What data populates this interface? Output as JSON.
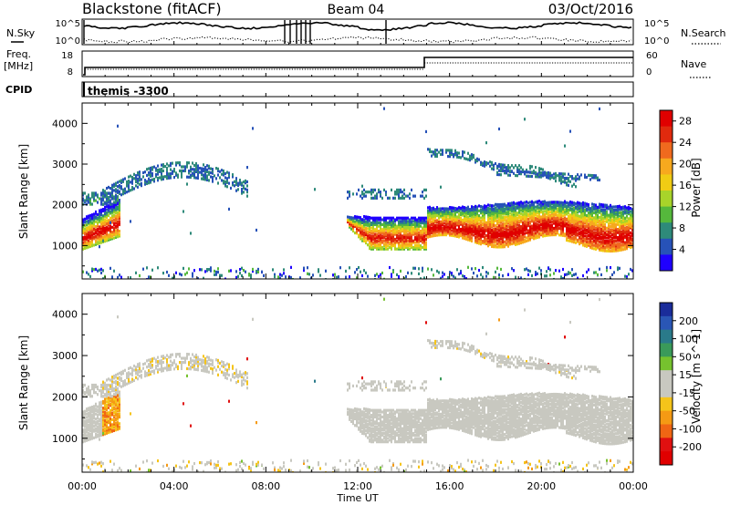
{
  "header": {
    "station": "Blackstone (fitACF)",
    "beam": "Beam 04",
    "date": "03/Oct/2016"
  },
  "top_panels": {
    "nsky_label": "N.Sky",
    "nsky_tick_hi": "10^5",
    "nsky_tick_lo": "10^0",
    "nsearch_label": "N.Search",
    "freq_label": "Freq.",
    "freq_unit": "[MHz]",
    "freq_tick_hi": "18",
    "freq_tick_lo": "8",
    "nave_label": "Nave",
    "nave_tick_hi": "60",
    "nave_tick_lo": "0",
    "cpid_label": "CPID",
    "cpid_value": "themis -3300"
  },
  "chart_data": [
    {
      "type": "heatmap",
      "title": "",
      "xlabel": "Time UT",
      "ylabel": "Slant Range [km]",
      "x_ticks": [
        "00:00",
        "04:00",
        "08:00",
        "12:00",
        "16:00",
        "20:00",
        "00:00"
      ],
      "y_ticks": [
        "1000",
        "2000",
        "3000",
        "4000"
      ],
      "ylim": [
        180,
        4500
      ],
      "colorbar": {
        "label": "Power [dB]",
        "ticks": [
          "4",
          "8",
          "12",
          "16",
          "20",
          "24",
          "28"
        ],
        "range": [
          0,
          30
        ],
        "colors": [
          "#1f00ff",
          "#2752b8",
          "#2e8a7a",
          "#55b83c",
          "#a8d42a",
          "#f0cc14",
          "#f7a91e",
          "#f06a1e",
          "#e02a0e",
          "#e00000"
        ]
      },
      "features": [
        {
          "time_range": [
            "00:00",
            "01:30"
          ],
          "range_km": [
            1000,
            1800
          ],
          "peak_power_db": 28
        },
        {
          "time_range": [
            "00:00",
            "03:00"
          ],
          "range_km": [
            2000,
            2500
          ],
          "peak_power_db": 8
        },
        {
          "time_range": [
            "02:30",
            "07:00"
          ],
          "range_km": [
            2500,
            3000
          ],
          "peak_power_db": 8
        },
        {
          "time_range": [
            "11:30",
            "15:00"
          ],
          "range_km": [
            1000,
            1700
          ],
          "peak_power_db": 28
        },
        {
          "time_range": [
            "15:00",
            "24:00"
          ],
          "range_km": [
            1200,
            2100
          ],
          "peak_power_db": 28
        },
        {
          "time_range": [
            "15:00",
            "24:00"
          ],
          "range_km": [
            2700,
            3500
          ],
          "peak_power_db": 8
        }
      ]
    },
    {
      "type": "heatmap",
      "title": "",
      "xlabel": "Time UT",
      "ylabel": "Slant Range [km]",
      "x_ticks": [
        "00:00",
        "04:00",
        "08:00",
        "12:00",
        "16:00",
        "20:00",
        "00:00"
      ],
      "y_ticks": [
        "1000",
        "2000",
        "3000",
        "4000"
      ],
      "ylim": [
        180,
        4500
      ],
      "colorbar": {
        "label": "Velocity [m s^-1]",
        "ticks": [
          "200",
          "100",
          "50",
          "15",
          "-15",
          "-50",
          "-100",
          "-200"
        ],
        "range": [
          -250,
          250
        ],
        "colors": [
          "#1a2c9a",
          "#2a56b5",
          "#2a7a8a",
          "#3a9a5a",
          "#76c22e",
          "#c8c8c0",
          "#c8c8c0",
          "#f5c41a",
          "#f59a14",
          "#f06614",
          "#e01010",
          "#e00000"
        ]
      },
      "features": [
        {
          "time_range": [
            "00:00",
            "01:30"
          ],
          "range_km": [
            1000,
            1800
          ],
          "dominant_velocity": "ground scatter / negative"
        },
        {
          "time_range": [
            "11:30",
            "15:00"
          ],
          "range_km": [
            1000,
            1700
          ],
          "dominant_velocity": "ground scatter"
        },
        {
          "time_range": [
            "15:00",
            "24:00"
          ],
          "range_km": [
            1200,
            2100
          ],
          "dominant_velocity": "ground scatter"
        }
      ]
    }
  ]
}
